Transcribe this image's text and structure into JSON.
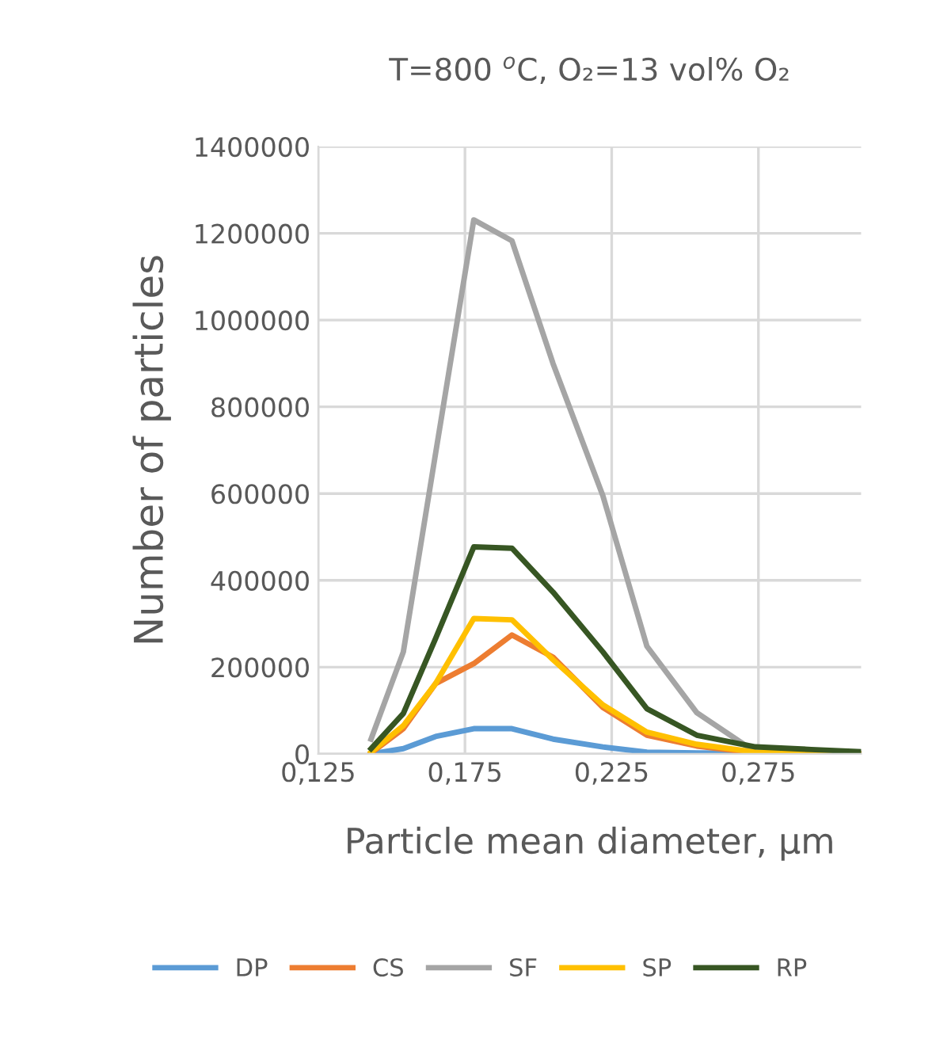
{
  "chart_data": {
    "type": "line",
    "title": "T=800 $^{o}$C, O₂=13 vol% O₂",
    "xlabel": "Particle mean diameter, µm",
    "ylabel": "Number of particles",
    "x": [
      0.143,
      0.154,
      0.165,
      0.178,
      0.191,
      0.205,
      0.222,
      0.237,
      0.254,
      0.274,
      0.293,
      0.31
    ],
    "series": [
      {
        "name": "DP",
        "color": "#5b9bd5",
        "values": [
          0,
          12000,
          40000,
          58000,
          58000,
          34000,
          16000,
          4000,
          2000,
          1000,
          0,
          0
        ]
      },
      {
        "name": "CS",
        "color": "#ed7d31",
        "values": [
          2000,
          58000,
          162000,
          208000,
          274000,
          223000,
          107000,
          43000,
          18000,
          2000,
          0,
          0
        ]
      },
      {
        "name": "SF",
        "color": "#a5a5a5",
        "values": [
          34000,
          235000,
          693000,
          1231000,
          1183000,
          900000,
          595000,
          248000,
          95000,
          4000,
          0,
          0
        ]
      },
      {
        "name": "SP",
        "color": "#ffc000",
        "values": [
          4000,
          65000,
          162000,
          312000,
          309000,
          217000,
          113000,
          50000,
          22000,
          4000,
          0,
          0
        ]
      },
      {
        "name": "RP",
        "color": "#375623",
        "values": [
          12000,
          93000,
          266000,
          477000,
          474000,
          373000,
          235000,
          104000,
          43000,
          16000,
          10000,
          5000
        ]
      }
    ],
    "xlim": [
      0.125,
      0.31
    ],
    "xticks": [
      {
        "value": 0.125,
        "label": "0,125"
      },
      {
        "value": 0.175,
        "label": "0,175"
      },
      {
        "value": 0.225,
        "label": "0,225"
      },
      {
        "value": 0.275,
        "label": "0,275"
      }
    ],
    "ylim": [
      0,
      1400000
    ],
    "yticks": [
      0,
      200000,
      400000,
      600000,
      800000,
      1000000,
      1200000,
      1400000
    ],
    "grid": true,
    "legend": "bottom",
    "marker": "none",
    "line_style": "solid"
  }
}
